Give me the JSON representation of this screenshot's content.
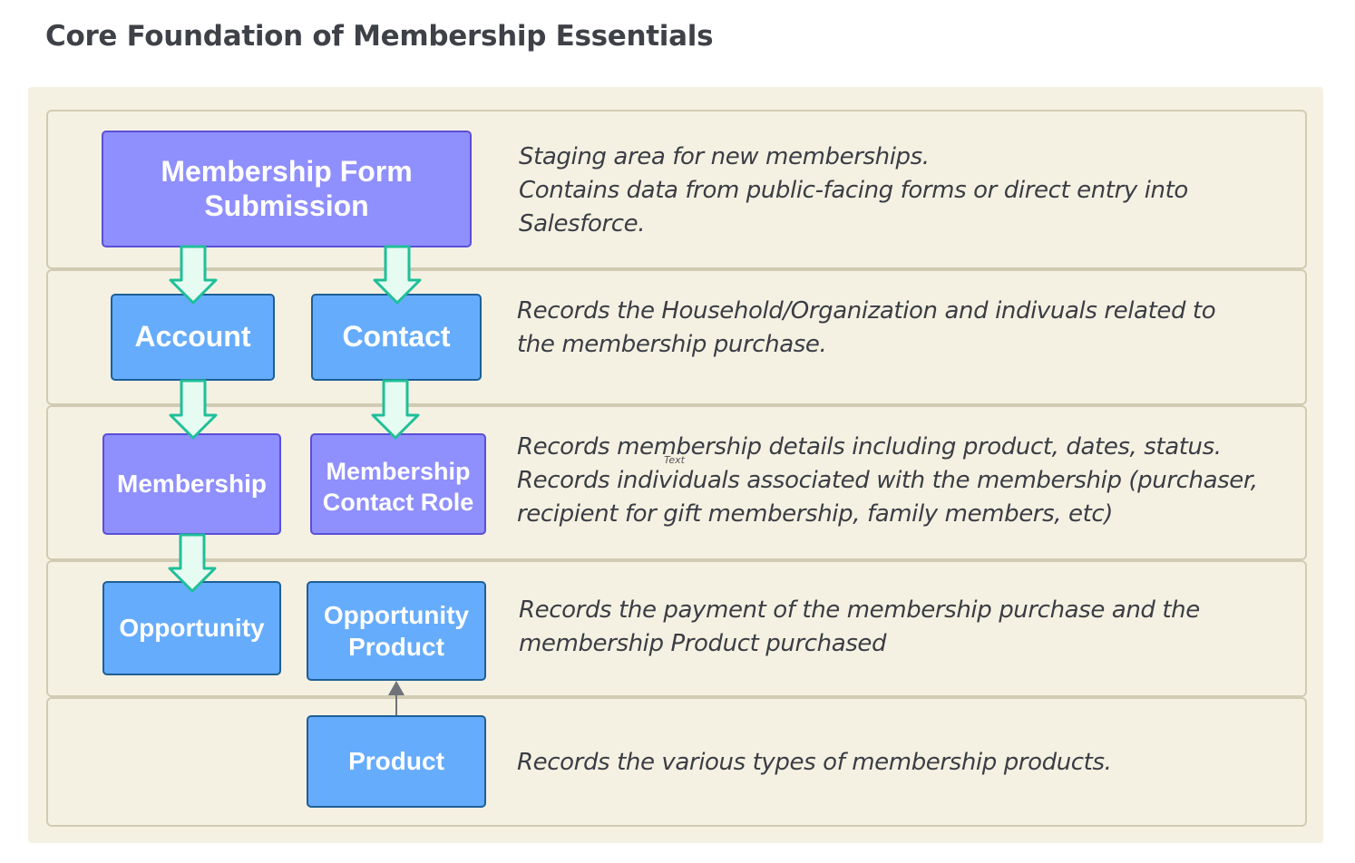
{
  "title": "Core Foundation of Membership Essentials",
  "nodes": {
    "membership_form": "Membership Form Submission",
    "account": "Account",
    "contact": "Contact",
    "membership": "Membership",
    "membership_contact_role": "Membership Contact Role",
    "opportunity": "Opportunity",
    "opportunity_product": "Opportunity Product",
    "product": "Product"
  },
  "descriptions": {
    "row1": [
      "Staging area for new memberships.",
      "Contains data from public-facing forms or direct entry into",
      "Salesforce."
    ],
    "row2": [
      "Records the Household/Organization and indivuals related to",
      "the membership purchase."
    ],
    "row3": [
      "Records membership details including product, dates, status.",
      "Records individuals associated with the membership (purchaser,",
      "recipient for gift membership, family members, etc)"
    ],
    "row4": [
      "Records the payment of the membership purchase and the",
      "membership Product purchased"
    ],
    "row5": [
      "Records the various types of membership products."
    ]
  },
  "stray_label": "Text",
  "colors": {
    "purple_fill": "#8f8ffe",
    "blue_fill": "#66acfc",
    "arrow_fill": "#e6fbf1",
    "arrow_stroke": "#1fbf99",
    "band_fill": "#f5f1e2"
  }
}
